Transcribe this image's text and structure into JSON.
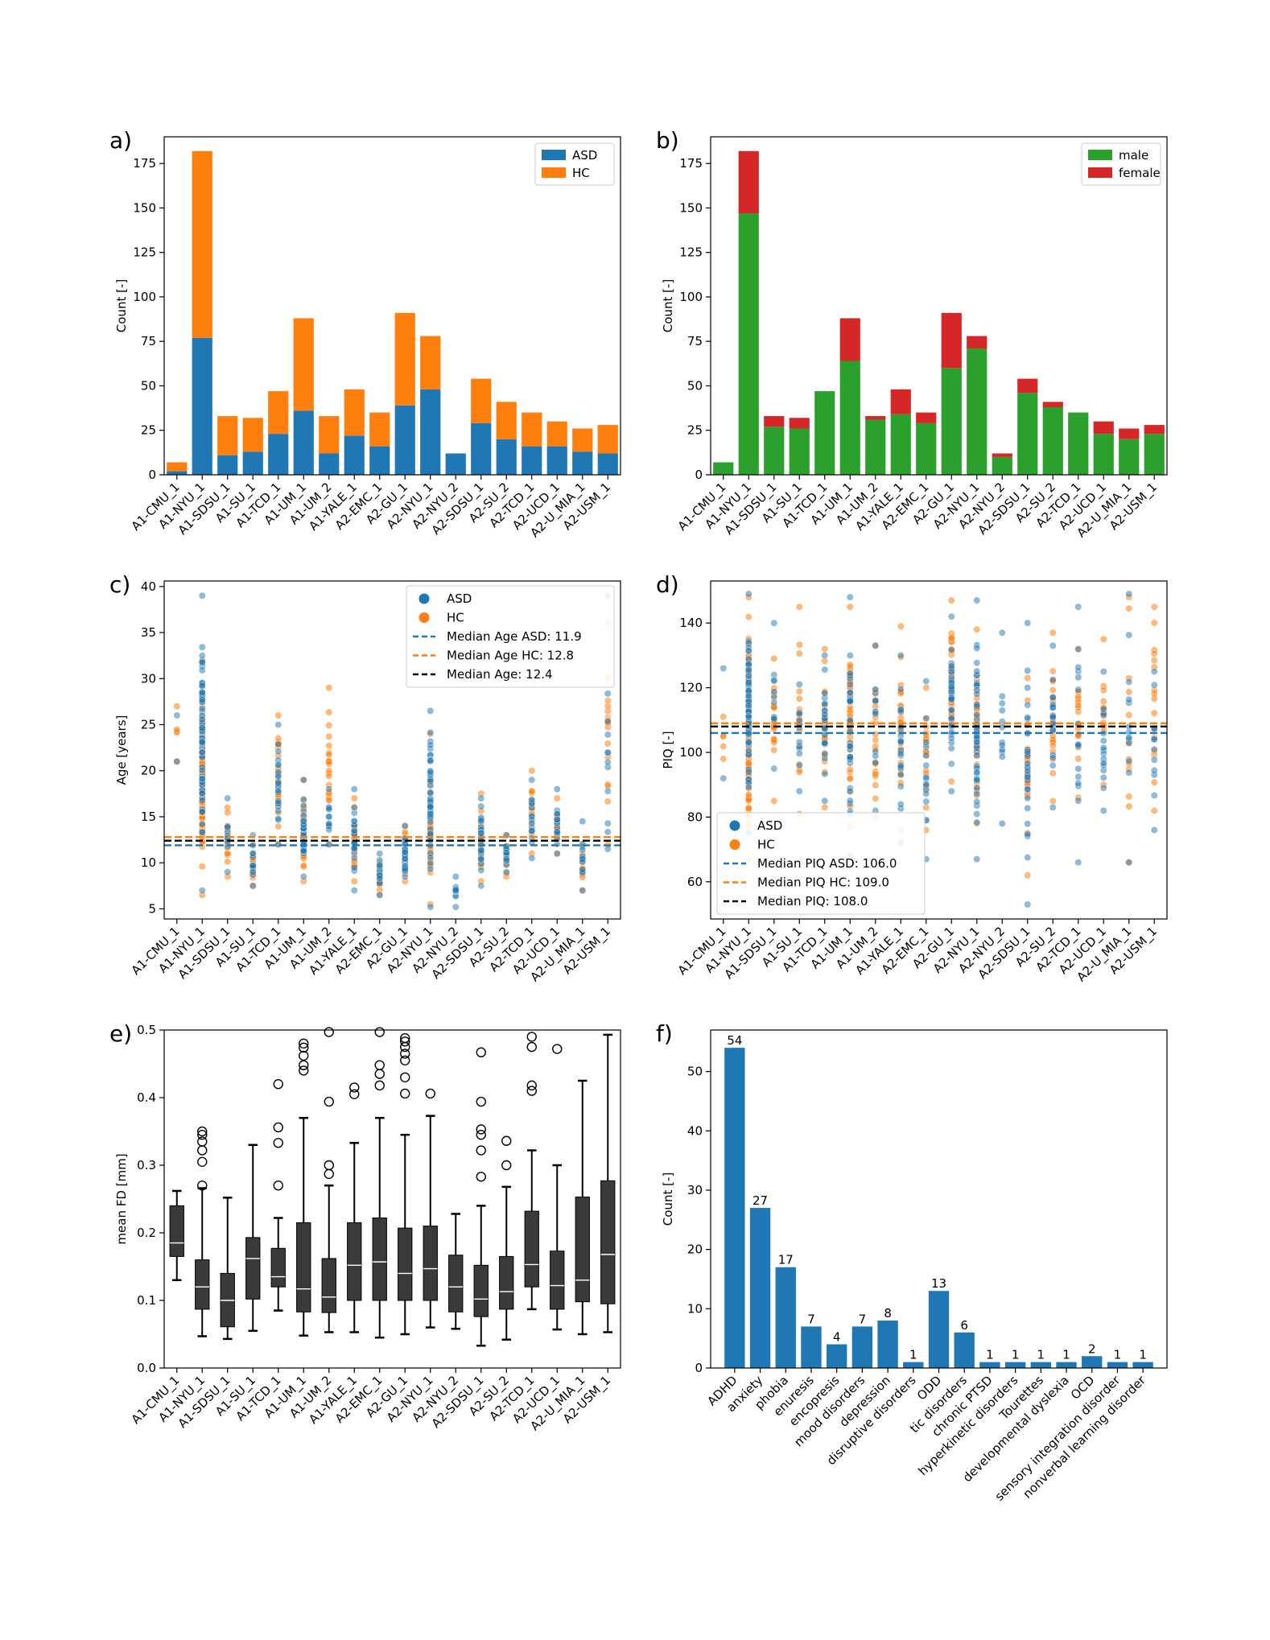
{
  "sites": [
    "A1-CMU_1",
    "A1-NYU_1",
    "A1-SDSU_1",
    "A1-SU_1",
    "A1-TCD_1",
    "A1-UM_1",
    "A1-UM_2",
    "A1-YALE_1",
    "A2-EMC_1",
    "A2-GU_1",
    "A2-NYU_1",
    "A2-NYU_2",
    "A2-SDSU_1",
    "A2-SU_2",
    "A2-TCD_1",
    "A2-UCD_1",
    "A2-U_MIA_1",
    "A2-USM_1"
  ],
  "colors": {
    "asd": "#1f77b4",
    "hc": "#ff7f0e",
    "male": "#2ca02c",
    "female": "#d62728",
    "black": "#000000",
    "box": "#3a3a3a"
  },
  "chart_data": [
    {
      "panel": "a)",
      "type": "bar",
      "stacked": true,
      "ylabel": "Count [-]",
      "ylim": [
        0,
        190
      ],
      "yticks": [
        0,
        25,
        50,
        75,
        100,
        125,
        150,
        175
      ],
      "legend_position": "top-right",
      "series": [
        {
          "name": "ASD",
          "values": [
            2,
            77,
            11,
            13,
            23,
            36,
            12,
            22,
            16,
            39,
            48,
            12,
            29,
            20,
            16,
            16,
            13,
            12
          ]
        },
        {
          "name": "HC",
          "values": [
            5,
            105,
            22,
            19,
            24,
            52,
            21,
            26,
            19,
            52,
            30,
            0,
            25,
            21,
            19,
            14,
            13,
            16
          ]
        }
      ]
    },
    {
      "panel": "b)",
      "type": "bar",
      "stacked": true,
      "ylabel": "Count [-]",
      "ylim": [
        0,
        190
      ],
      "yticks": [
        0,
        25,
        50,
        75,
        100,
        125,
        150,
        175
      ],
      "legend_position": "top-right",
      "series": [
        {
          "name": "male",
          "values": [
            7,
            147,
            27,
            26,
            47,
            64,
            31,
            34,
            29,
            60,
            71,
            10,
            46,
            38,
            35,
            23,
            20,
            23
          ]
        },
        {
          "name": "female",
          "values": [
            0,
            35,
            6,
            6,
            0,
            24,
            2,
            14,
            6,
            31,
            7,
            2,
            8,
            3,
            0,
            7,
            6,
            5
          ]
        }
      ]
    },
    {
      "panel": "c)",
      "type": "scatter",
      "ylabel": "Age [years]",
      "ylim": [
        3.9,
        40.6
      ],
      "yticks": [
        5,
        10,
        15,
        20,
        25,
        30,
        35,
        40
      ],
      "legend_position": "top-right",
      "legend": {
        "asd": "ASD",
        "hc": "HC",
        "median_asd": "Median Age ASD: 11.9",
        "median_hc": "Median Age HC: 12.8",
        "median_all": "Median Age: 12.4"
      },
      "medians": {
        "asd": 11.9,
        "hc": 12.8,
        "all": 12.4
      },
      "ranges": {
        "asd": [
          [
            21,
            26
          ],
          [
            7,
            39
          ],
          [
            9,
            17
          ],
          [
            7.5,
            13
          ],
          [
            12,
            25
          ],
          [
            8.5,
            19
          ],
          [
            12,
            18
          ],
          [
            7,
            18
          ],
          [
            6.5,
            11
          ],
          [
            8.5,
            14
          ],
          [
            5.2,
            26.5
          ],
          [
            5.2,
            8.5
          ],
          [
            7.5,
            17
          ],
          [
            9,
            13
          ],
          [
            10.5,
            19
          ],
          [
            11,
            18
          ],
          [
            7,
            14.5
          ],
          [
            11.5,
            39
          ]
        ],
        "hc": [
          [
            21,
            27
          ],
          [
            6.5,
            32
          ],
          [
            8.5,
            16
          ],
          [
            7.5,
            12
          ],
          [
            12,
            26
          ],
          [
            8,
            19
          ],
          [
            12,
            29
          ],
          [
            8,
            17
          ],
          [
            6.5,
            10
          ],
          [
            8,
            14
          ],
          [
            5.5,
            24
          ],
          [
            0,
            0
          ],
          [
            8,
            17.5
          ],
          [
            8.5,
            13
          ],
          [
            11,
            20
          ],
          [
            11,
            17
          ],
          [
            7,
            12
          ],
          [
            12,
            36
          ]
        ]
      },
      "counts": {
        "asd": [
          2,
          77,
          11,
          13,
          23,
          36,
          12,
          22,
          16,
          39,
          48,
          12,
          29,
          20,
          16,
          16,
          13,
          12
        ],
        "hc": [
          5,
          105,
          22,
          19,
          24,
          52,
          21,
          26,
          19,
          52,
          30,
          0,
          25,
          21,
          19,
          14,
          13,
          16
        ]
      }
    },
    {
      "panel": "d)",
      "type": "scatter",
      "ylabel": "PIQ [-]",
      "ylim": [
        48.5,
        153
      ],
      "yticks": [
        60,
        80,
        100,
        120,
        140
      ],
      "legend_position": "bottom-left",
      "legend": {
        "asd": "ASD",
        "hc": "HC",
        "median_asd": "Median PIQ ASD: 106.0",
        "median_hc": "Median PIQ HC: 109.0",
        "median_all": "Median PIQ: 108.0"
      },
      "medians": {
        "asd": 106.0,
        "hc": 109.0,
        "all": 108.0
      },
      "ranges": {
        "asd": [
          [
            92,
            126
          ],
          [
            75,
            149
          ],
          [
            95,
            140
          ],
          [
            88,
            121
          ],
          [
            85,
            130
          ],
          [
            68,
            148
          ],
          [
            82,
            133
          ],
          [
            72,
            130
          ],
          [
            67,
            122
          ],
          [
            88,
            142
          ],
          [
            67,
            147
          ],
          [
            78,
            137
          ],
          [
            53,
            140
          ],
          [
            83,
            133
          ],
          [
            66,
            145
          ],
          [
            82,
            125
          ],
          [
            66,
            149
          ],
          [
            76,
            125
          ]
        ],
        "hc": [
          [
            98,
            111
          ],
          [
            67,
            148
          ],
          [
            85,
            129
          ],
          [
            81,
            145
          ],
          [
            83,
            132
          ],
          [
            77,
            145
          ],
          [
            80,
            133
          ],
          [
            76,
            139
          ],
          [
            76,
            120
          ],
          [
            91,
            147
          ],
          [
            78,
            138
          ],
          [
            0,
            0
          ],
          [
            62,
            123
          ],
          [
            85,
            137
          ],
          [
            86,
            132
          ],
          [
            90,
            135
          ],
          [
            66,
            148
          ],
          [
            82,
            145
          ]
        ]
      },
      "counts": {
        "asd": [
          2,
          77,
          11,
          13,
          23,
          36,
          12,
          22,
          16,
          39,
          48,
          12,
          29,
          20,
          16,
          16,
          13,
          12
        ],
        "hc": [
          5,
          105,
          22,
          19,
          24,
          52,
          21,
          26,
          19,
          52,
          30,
          0,
          25,
          21,
          19,
          14,
          13,
          16
        ]
      }
    },
    {
      "panel": "e)",
      "type": "box",
      "ylabel": "mean FD [mm]",
      "ylim": [
        0,
        0.5
      ],
      "yticks": [
        0.0,
        0.1,
        0.2,
        0.3,
        0.4,
        0.5
      ],
      "boxes": [
        {
          "whisker_low": 0.13,
          "q1": 0.165,
          "median": 0.185,
          "q3": 0.24,
          "whisker_high": 0.262,
          "outliers": []
        },
        {
          "whisker_low": 0.047,
          "q1": 0.087,
          "median": 0.12,
          "q3": 0.16,
          "whisker_high": 0.266,
          "outliers": [
            0.27,
            0.305,
            0.322,
            0.335,
            0.345,
            0.35
          ]
        },
        {
          "whisker_low": 0.043,
          "q1": 0.061,
          "median": 0.1,
          "q3": 0.14,
          "whisker_high": 0.252,
          "outliers": []
        },
        {
          "whisker_low": 0.055,
          "q1": 0.102,
          "median": 0.162,
          "q3": 0.193,
          "whisker_high": 0.33,
          "outliers": []
        },
        {
          "whisker_low": 0.085,
          "q1": 0.12,
          "median": 0.135,
          "q3": 0.177,
          "whisker_high": 0.222,
          "outliers": [
            0.27,
            0.333,
            0.356,
            0.42
          ]
        },
        {
          "whisker_low": 0.048,
          "q1": 0.083,
          "median": 0.117,
          "q3": 0.215,
          "whisker_high": 0.37,
          "outliers": [
            0.44,
            0.448,
            0.462,
            0.474,
            0.48
          ]
        },
        {
          "whisker_low": 0.053,
          "q1": 0.082,
          "median": 0.105,
          "q3": 0.162,
          "whisker_high": 0.27,
          "outliers": [
            0.287,
            0.3,
            0.394,
            0.497
          ]
        },
        {
          "whisker_low": 0.053,
          "q1": 0.1,
          "median": 0.152,
          "q3": 0.215,
          "whisker_high": 0.333,
          "outliers": [
            0.405,
            0.415
          ]
        },
        {
          "whisker_low": 0.045,
          "q1": 0.1,
          "median": 0.157,
          "q3": 0.222,
          "whisker_high": 0.37,
          "outliers": [
            0.418,
            0.435,
            0.448,
            0.497
          ]
        },
        {
          "whisker_low": 0.05,
          "q1": 0.1,
          "median": 0.14,
          "q3": 0.207,
          "whisker_high": 0.345,
          "outliers": [
            0.406,
            0.43,
            0.455,
            0.465,
            0.475,
            0.483,
            0.488
          ]
        },
        {
          "whisker_low": 0.06,
          "q1": 0.1,
          "median": 0.147,
          "q3": 0.21,
          "whisker_high": 0.373,
          "outliers": [
            0.406
          ]
        },
        {
          "whisker_low": 0.058,
          "q1": 0.083,
          "median": 0.12,
          "q3": 0.167,
          "whisker_high": 0.228,
          "outliers": []
        },
        {
          "whisker_low": 0.033,
          "q1": 0.076,
          "median": 0.102,
          "q3": 0.152,
          "whisker_high": 0.24,
          "outliers": [
            0.283,
            0.322,
            0.345,
            0.353,
            0.394,
            0.467
          ]
        },
        {
          "whisker_low": 0.042,
          "q1": 0.087,
          "median": 0.113,
          "q3": 0.165,
          "whisker_high": 0.268,
          "outliers": [
            0.3,
            0.336
          ]
        },
        {
          "whisker_low": 0.087,
          "q1": 0.12,
          "median": 0.153,
          "q3": 0.232,
          "whisker_high": 0.322,
          "outliers": [
            0.41,
            0.418,
            0.475,
            0.49
          ]
        },
        {
          "whisker_low": 0.057,
          "q1": 0.087,
          "median": 0.122,
          "q3": 0.173,
          "whisker_high": 0.3,
          "outliers": [
            0.472
          ]
        },
        {
          "whisker_low": 0.05,
          "q1": 0.098,
          "median": 0.13,
          "q3": 0.253,
          "whisker_high": 0.425,
          "outliers": []
        },
        {
          "whisker_low": 0.053,
          "q1": 0.095,
          "median": 0.168,
          "q3": 0.277,
          "whisker_high": 0.493,
          "outliers": []
        }
      ]
    },
    {
      "panel": "f)",
      "type": "bar",
      "ylabel": "Count [-]",
      "ylim": [
        0,
        57
      ],
      "yticks": [
        0,
        10,
        20,
        30,
        40,
        50
      ],
      "categories": [
        "ADHD",
        "anxiety",
        "phobia",
        "enuresis",
        "encopresis",
        "mood disorders",
        "depression",
        "disruptive disorders",
        "ODD",
        "tic disorders",
        "chronic PTSD",
        "hyperkinetic disorders",
        "Tourettes",
        "developmental dyslexia",
        "OCD",
        "sensory integration disorder",
        "nonverbal learning disorder"
      ],
      "values": [
        54,
        27,
        17,
        7,
        4,
        7,
        8,
        1,
        13,
        6,
        1,
        1,
        1,
        1,
        2,
        1,
        1
      ],
      "data_labels": true
    }
  ]
}
